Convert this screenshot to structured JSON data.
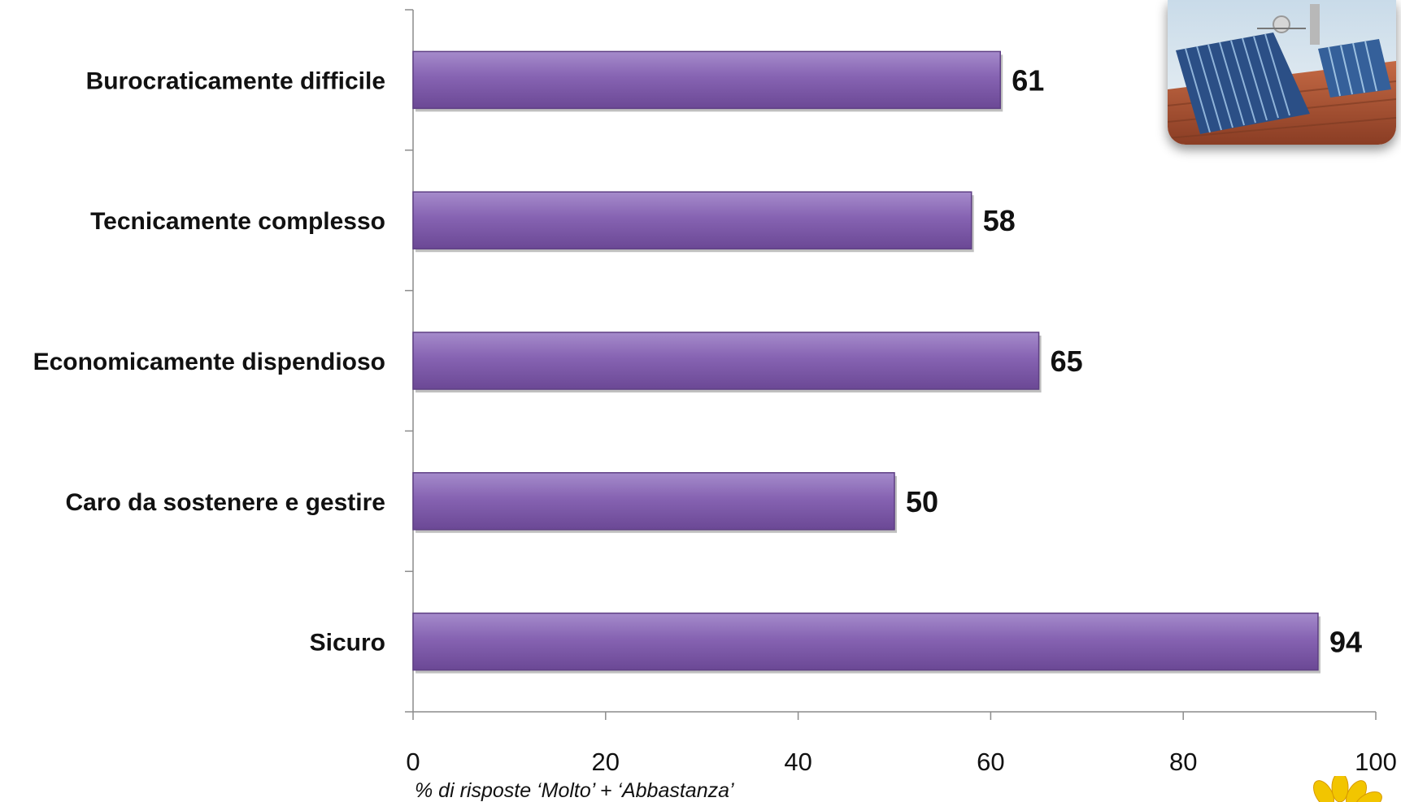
{
  "chart_data": {
    "type": "bar",
    "orientation": "horizontal",
    "categories": [
      "Burocraticamente difficile",
      "Tecnicamente complesso",
      "Economicamente dispendioso",
      "Caro da sostenere e gestire",
      "Sicuro"
    ],
    "values": [
      61,
      58,
      65,
      50,
      94
    ],
    "value_labels": [
      "61",
      "58",
      "65",
      "50",
      "94"
    ],
    "xlim": [
      0,
      100
    ],
    "xticks": [
      "0",
      "20",
      "40",
      "60",
      "80",
      "100"
    ],
    "xlabel": "% di risposte ‘Molto’ + ‘Abbastanza’",
    "title": "",
    "ylabel": "",
    "grid": false,
    "legend": "none",
    "colors": {
      "bar_fill": "#7e5aa6",
      "bar_fill_light": "#9a7cc2",
      "bar_fill_dark": "#5e3f84",
      "axis": "#8c8c8c",
      "text": "#111111"
    }
  },
  "decor": {
    "photo_icon": "solar-panels-rooftop-photo",
    "corner_icon": "sunflower-icon"
  }
}
